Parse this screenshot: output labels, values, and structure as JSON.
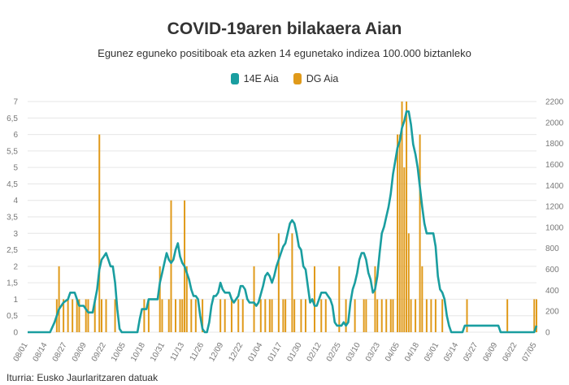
{
  "chart_data": {
    "type": "bar+line",
    "title": "COVID-19aren bilakaera Aian",
    "subtitle": "Egunez eguneko positiboak eta azken 14 egunetako indizea 100.000 biztanleko",
    "source": "Iturria: Eusko Jaurlaritzaren datuak",
    "legend": [
      {
        "name": "14E Aia",
        "color": "#1a9ea0"
      },
      {
        "name": "DG Aia",
        "color": "#e09a1a"
      }
    ],
    "y_left": {
      "min": 0,
      "max": 7,
      "ticks": [
        "0",
        "0,5",
        "1",
        "1,5",
        "2",
        "2,5",
        "3",
        "3,5",
        "4",
        "4,5",
        "5",
        "5,5",
        "6",
        "6,5",
        "7"
      ]
    },
    "y_right": {
      "min": 0,
      "max": 2200,
      "ticks": [
        "0",
        "200",
        "400",
        "600",
        "800",
        "1000",
        "1200",
        "1400",
        "1600",
        "1800",
        "2000",
        "2200"
      ]
    },
    "x_ticks": [
      "08/01",
      "08/14",
      "08/27",
      "09/09",
      "09/22",
      "10/05",
      "10/18",
      "10/31",
      "11/13",
      "11/26",
      "12/09",
      "12/22",
      "01/04",
      "01/17",
      "01/30",
      "02/12",
      "02/25",
      "03/10",
      "03/23",
      "04/05",
      "04/18",
      "05/01",
      "05/14",
      "05/27",
      "06/09",
      "06/22",
      "07/05"
    ],
    "series_14e": {
      "name": "14E Aia",
      "points": [
        [
          0,
          0
        ],
        [
          10,
          0
        ],
        [
          12,
          0.3
        ],
        [
          14,
          0.7
        ],
        [
          16,
          0.9
        ],
        [
          18,
          1
        ],
        [
          19,
          1.2
        ],
        [
          21,
          1.2
        ],
        [
          22,
          1
        ],
        [
          23,
          0.8
        ],
        [
          25,
          0.8
        ],
        [
          27,
          0.6
        ],
        [
          29,
          0.6
        ],
        [
          31,
          1.3
        ],
        [
          32,
          1.9
        ],
        [
          33,
          2.2
        ],
        [
          34,
          2.3
        ],
        [
          35,
          2.4
        ],
        [
          36,
          2.2
        ],
        [
          37,
          2
        ],
        [
          38,
          2
        ],
        [
          39,
          1.5
        ],
        [
          40,
          0.7
        ],
        [
          41,
          0.1
        ],
        [
          42,
          0
        ],
        [
          49,
          0
        ],
        [
          50,
          0.4
        ],
        [
          51,
          0.7
        ],
        [
          53,
          0.7
        ],
        [
          54,
          1
        ],
        [
          58,
          1
        ],
        [
          59,
          1.5
        ],
        [
          60,
          1.8
        ],
        [
          61,
          2.1
        ],
        [
          62,
          2.4
        ],
        [
          63,
          2.2
        ],
        [
          64,
          2.1
        ],
        [
          65,
          2.2
        ],
        [
          66,
          2.5
        ],
        [
          67,
          2.7
        ],
        [
          68,
          2.3
        ],
        [
          69,
          2.1
        ],
        [
          70,
          2
        ],
        [
          71,
          1.8
        ],
        [
          72,
          1.6
        ],
        [
          73,
          1.3
        ],
        [
          74,
          1.1
        ],
        [
          75,
          1.1
        ],
        [
          76,
          1
        ],
        [
          77,
          0.5
        ],
        [
          78,
          0.1
        ],
        [
          79,
          0
        ],
        [
          80,
          0
        ],
        [
          81,
          0.3
        ],
        [
          82,
          0.8
        ],
        [
          83,
          1.1
        ],
        [
          84,
          1.1
        ],
        [
          85,
          1.2
        ],
        [
          86,
          1.5
        ],
        [
          87,
          1.3
        ],
        [
          88,
          1.2
        ],
        [
          89,
          1.2
        ],
        [
          90,
          1.2
        ],
        [
          91,
          1
        ],
        [
          92,
          0.9
        ],
        [
          94,
          1.1
        ],
        [
          95,
          1.4
        ],
        [
          96,
          1.4
        ],
        [
          97,
          1.3
        ],
        [
          98,
          1
        ],
        [
          99,
          0.9
        ],
        [
          101,
          0.9
        ],
        [
          102,
          0.8
        ],
        [
          103,
          0.9
        ],
        [
          105,
          1.4
        ],
        [
          106,
          1.7
        ],
        [
          107,
          1.8
        ],
        [
          108,
          1.7
        ],
        [
          109,
          1.5
        ],
        [
          110,
          1.7
        ],
        [
          111,
          2
        ],
        [
          112,
          2.2
        ],
        [
          113,
          2.4
        ],
        [
          114,
          2.6
        ],
        [
          115,
          2.7
        ],
        [
          116,
          3
        ],
        [
          117,
          3.3
        ],
        [
          118,
          3.4
        ],
        [
          119,
          3.3
        ],
        [
          120,
          3
        ],
        [
          121,
          2.6
        ],
        [
          122,
          2.5
        ],
        [
          123,
          2
        ],
        [
          124,
          1.9
        ],
        [
          125,
          1.4
        ],
        [
          126,
          0.9
        ],
        [
          127,
          1
        ],
        [
          128,
          0.8
        ],
        [
          129,
          0.8
        ],
        [
          130,
          1
        ],
        [
          131,
          1.2
        ],
        [
          132,
          1.2
        ],
        [
          133,
          1.2
        ],
        [
          134,
          1.1
        ],
        [
          135,
          1
        ],
        [
          136,
          0.8
        ],
        [
          137,
          0.3
        ],
        [
          138,
          0.2
        ],
        [
          140,
          0.2
        ],
        [
          141,
          0.3
        ],
        [
          142,
          0.2
        ],
        [
          143,
          0.3
        ],
        [
          144,
          0.9
        ],
        [
          145,
          1.3
        ],
        [
          146,
          1.5
        ],
        [
          147,
          1.8
        ],
        [
          148,
          2.2
        ],
        [
          149,
          2.4
        ],
        [
          150,
          2.4
        ],
        [
          151,
          2.2
        ],
        [
          152,
          1.8
        ],
        [
          153,
          1.6
        ],
        [
          154,
          1.2
        ],
        [
          155,
          1.3
        ],
        [
          156,
          1.7
        ],
        [
          157,
          2.4
        ],
        [
          158,
          3
        ],
        [
          159,
          3.2
        ],
        [
          160,
          3.5
        ],
        [
          161,
          3.8
        ],
        [
          162,
          4.2
        ],
        [
          163,
          4.8
        ],
        [
          164,
          5.2
        ],
        [
          165,
          5.6
        ],
        [
          166,
          5.8
        ],
        [
          167,
          6.2
        ],
        [
          168,
          6.4
        ],
        [
          169,
          6.7
        ],
        [
          170,
          6.7
        ],
        [
          171,
          6.3
        ],
        [
          172,
          5.7
        ],
        [
          173,
          5.4
        ],
        [
          174,
          5
        ],
        [
          175,
          4.4
        ],
        [
          176,
          3.8
        ],
        [
          177,
          3.3
        ],
        [
          178,
          3
        ],
        [
          179,
          3
        ],
        [
          180,
          3
        ],
        [
          181,
          3
        ],
        [
          182,
          2.6
        ],
        [
          183,
          1.7
        ],
        [
          184,
          1.3
        ],
        [
          185,
          1.2
        ],
        [
          186,
          1
        ],
        [
          187,
          0.5
        ],
        [
          188,
          0.2
        ],
        [
          189,
          0
        ],
        [
          194,
          0
        ],
        [
          195,
          0.2
        ],
        [
          210,
          0.2
        ],
        [
          211,
          0
        ],
        [
          226,
          0
        ],
        [
          227,
          0.2
        ]
      ]
    },
    "series_dg": {
      "name": "DG Aia",
      "bars": [
        [
          13,
          1
        ],
        [
          14,
          2
        ],
        [
          16,
          1
        ],
        [
          18,
          1
        ],
        [
          20,
          1
        ],
        [
          22,
          1
        ],
        [
          23,
          1
        ],
        [
          26,
          1
        ],
        [
          27,
          1
        ],
        [
          30,
          1
        ],
        [
          32,
          6
        ],
        [
          33,
          1
        ],
        [
          35,
          1
        ],
        [
          39,
          1
        ],
        [
          52,
          1
        ],
        [
          54,
          1
        ],
        [
          59,
          2
        ],
        [
          60,
          1
        ],
        [
          63,
          1
        ],
        [
          64,
          4
        ],
        [
          66,
          1
        ],
        [
          68,
          1
        ],
        [
          69,
          1
        ],
        [
          70,
          4
        ],
        [
          71,
          2
        ],
        [
          73,
          1
        ],
        [
          75,
          1
        ],
        [
          78,
          1
        ],
        [
          86,
          1
        ],
        [
          88,
          1
        ],
        [
          91,
          1
        ],
        [
          94,
          1
        ],
        [
          96,
          1
        ],
        [
          101,
          2
        ],
        [
          104,
          1
        ],
        [
          106,
          1
        ],
        [
          108,
          1
        ],
        [
          109,
          1
        ],
        [
          112,
          3
        ],
        [
          114,
          1
        ],
        [
          115,
          1
        ],
        [
          118,
          3
        ],
        [
          119,
          1
        ],
        [
          122,
          1
        ],
        [
          124,
          1
        ],
        [
          128,
          2
        ],
        [
          131,
          1
        ],
        [
          133,
          1
        ],
        [
          139,
          2
        ],
        [
          142,
          1
        ],
        [
          146,
          1
        ],
        [
          150,
          1
        ],
        [
          151,
          1
        ],
        [
          155,
          2
        ],
        [
          156,
          1
        ],
        [
          158,
          1
        ],
        [
          160,
          1
        ],
        [
          162,
          1
        ],
        [
          163,
          1
        ],
        [
          165,
          6
        ],
        [
          166,
          6
        ],
        [
          167,
          7
        ],
        [
          168,
          5
        ],
        [
          169,
          7
        ],
        [
          170,
          3
        ],
        [
          171,
          1
        ],
        [
          173,
          1
        ],
        [
          175,
          6
        ],
        [
          176,
          2
        ],
        [
          178,
          1
        ],
        [
          180,
          1
        ],
        [
          182,
          1
        ],
        [
          185,
          1
        ],
        [
          196,
          1
        ],
        [
          214,
          1
        ],
        [
          226,
          1
        ],
        [
          227,
          1
        ]
      ]
    }
  }
}
